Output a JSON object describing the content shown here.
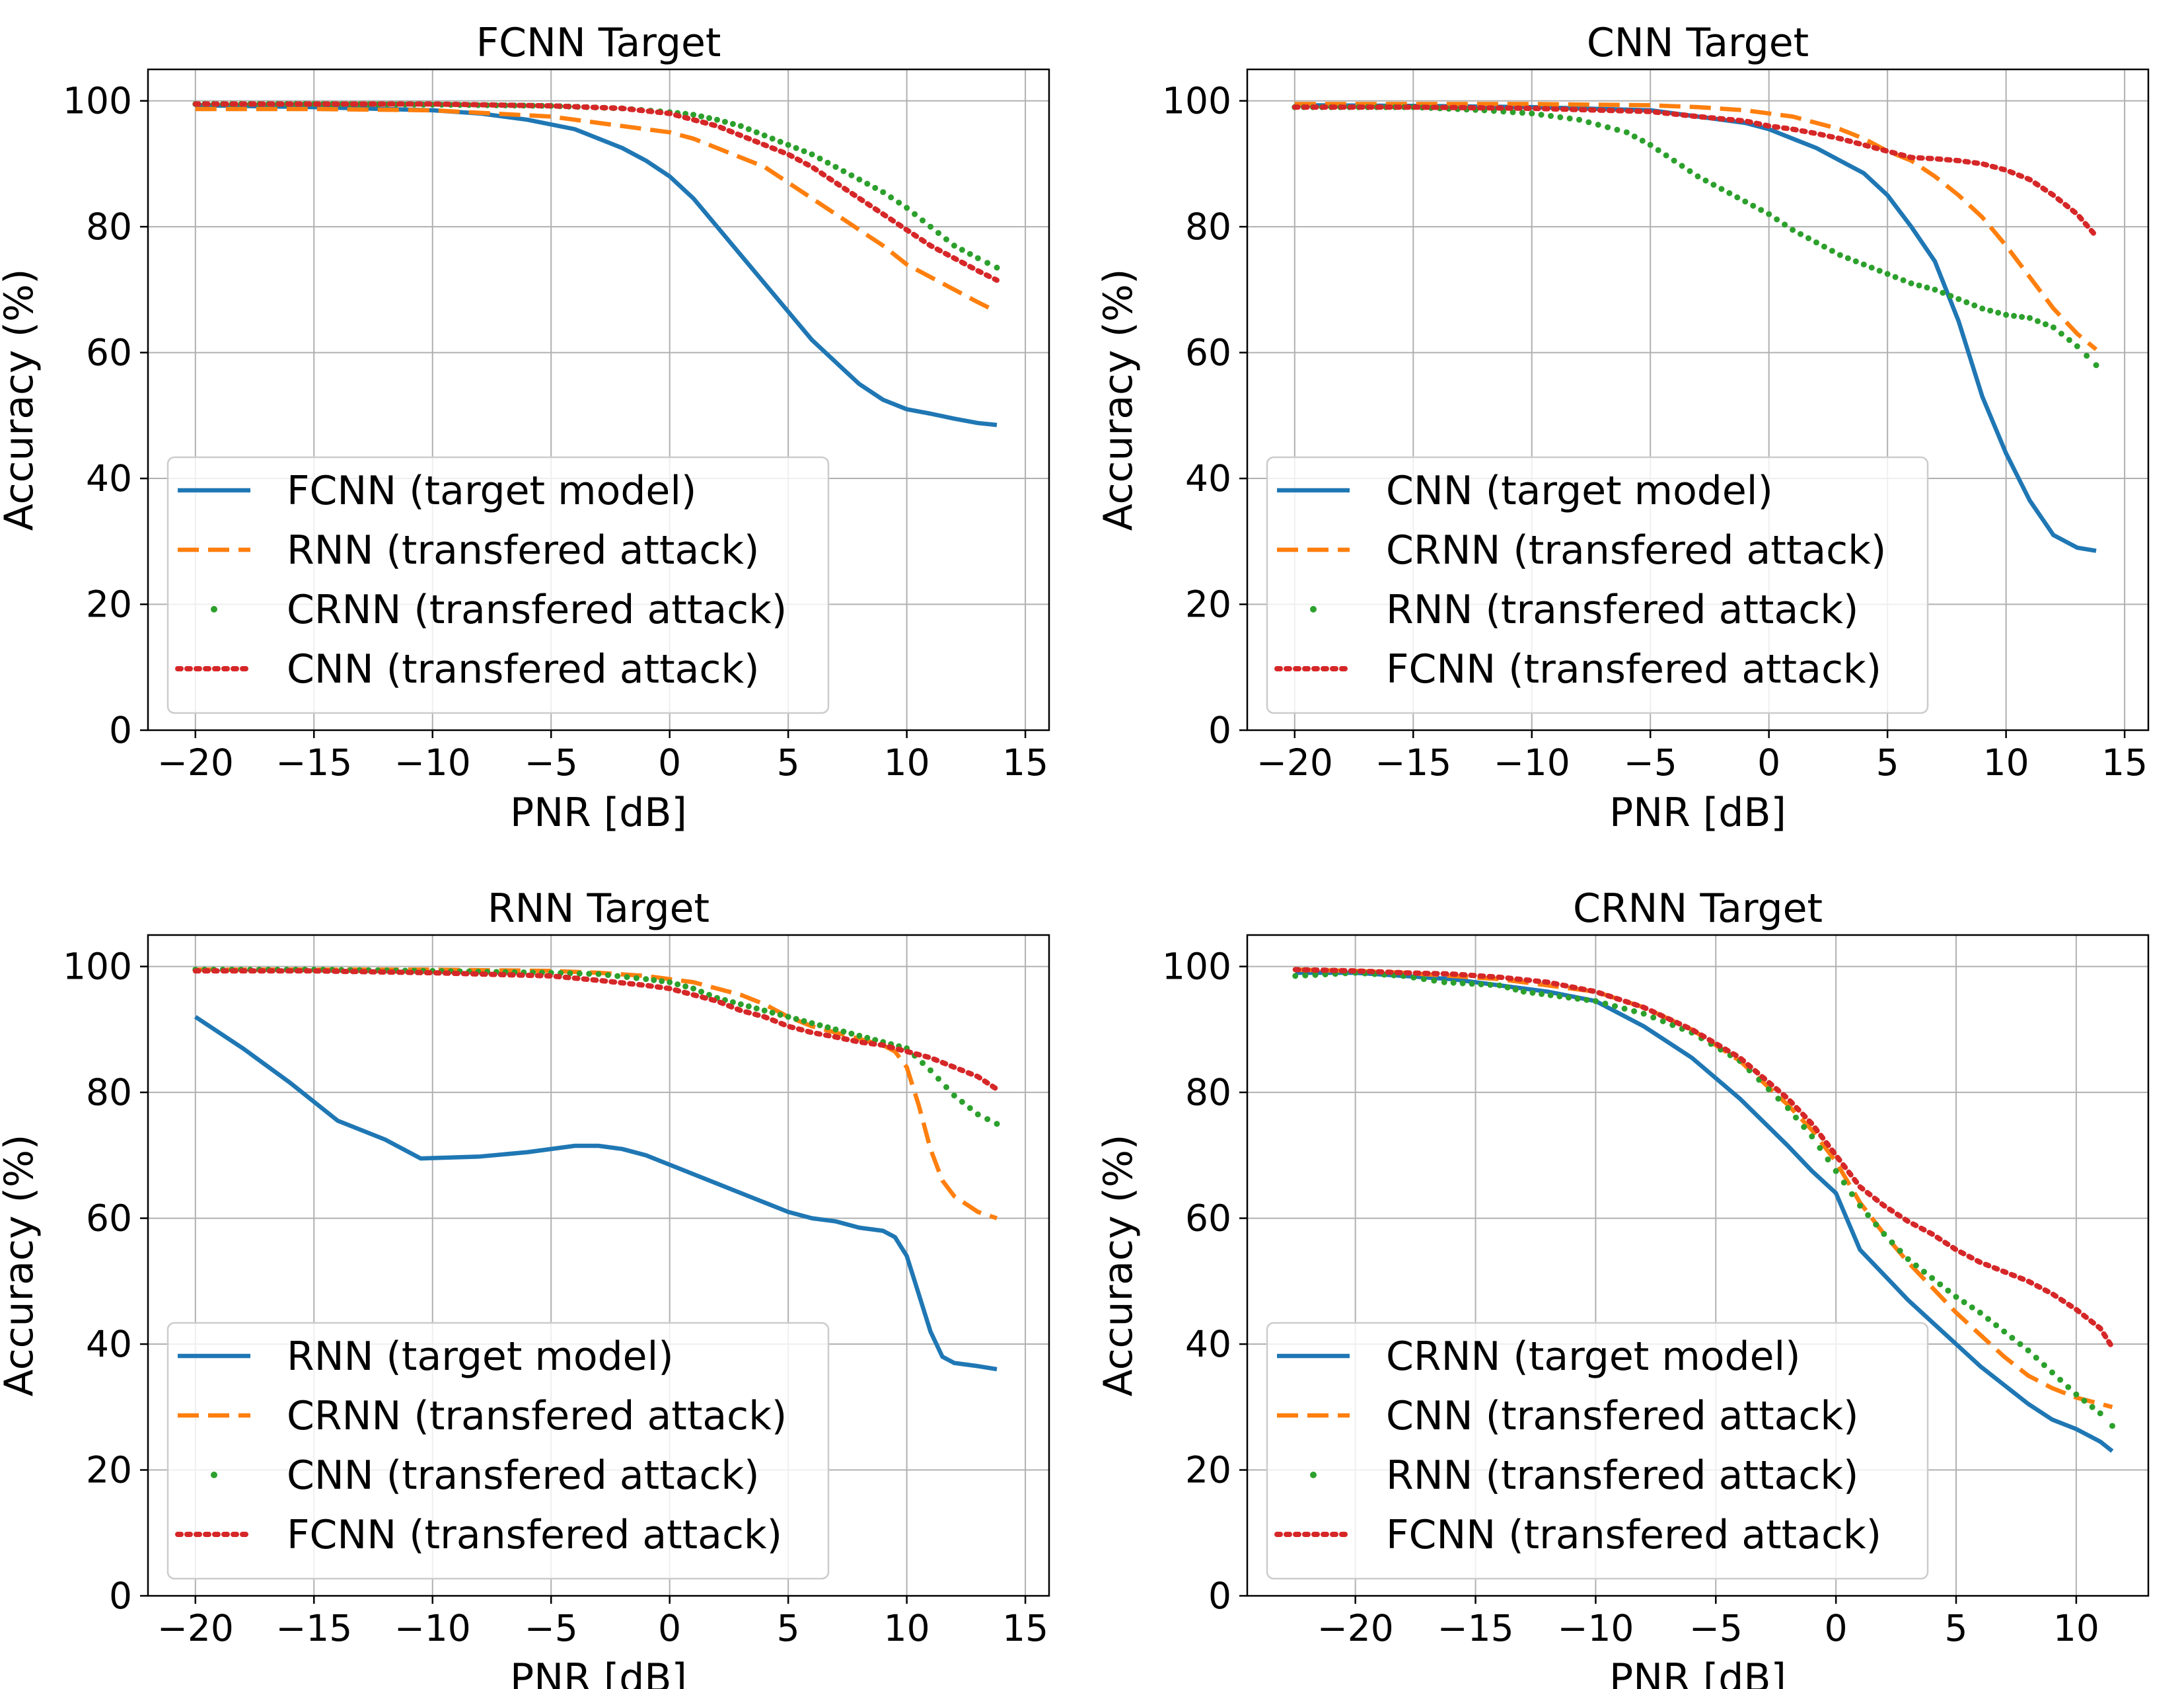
{
  "chart_data": [
    {
      "type": "line",
      "title": "FCNN Target",
      "xlabel": "PNR [dB]",
      "ylabel": "Accuracy (%)",
      "xlim": [
        -22,
        16
      ],
      "ylim": [
        0,
        105
      ],
      "xticks": [
        -20,
        -15,
        -10,
        -5,
        0,
        5,
        10,
        15
      ],
      "xtick_labels": [
        "−20",
        "−15",
        "−10",
        "−5",
        "0",
        "5",
        "10",
        "15"
      ],
      "yticks": [
        0,
        20,
        40,
        60,
        80,
        100
      ],
      "ytick_labels": [
        "0",
        "20",
        "40",
        "60",
        "80",
        "100"
      ],
      "grid": true,
      "legend_position": "lower-left",
      "series": [
        {
          "name": "FCNN (target model)",
          "style": "solid",
          "color": "#1f77b4",
          "x": [
            -20,
            -15,
            -10,
            -8,
            -6,
            -4,
            -2,
            -1,
            0,
            1,
            2,
            3,
            4,
            5,
            6,
            7,
            8,
            9,
            10,
            11,
            12,
            13,
            13.8
          ],
          "y": [
            99.3,
            99,
            98.5,
            98,
            97,
            95.5,
            92.5,
            90.5,
            88,
            84.5,
            80,
            75.5,
            71,
            66.5,
            62,
            58.5,
            55,
            52.5,
            51,
            50.3,
            49.5,
            48.8,
            48.5
          ]
        },
        {
          "name": "RNN (transfered attack)",
          "style": "dashed",
          "color": "#ff7f0e",
          "x": [
            -20,
            -15,
            -10,
            -5,
            -3,
            -1,
            0,
            1,
            2,
            3,
            4,
            5,
            6,
            7,
            8,
            9,
            10,
            11,
            12,
            13,
            13.8
          ],
          "y": [
            98.7,
            98.7,
            98.5,
            97.5,
            96.5,
            95.5,
            95,
            94,
            92.5,
            91,
            89.5,
            87,
            84.5,
            82,
            79.5,
            77,
            74,
            72,
            70,
            68,
            66.5
          ]
        },
        {
          "name": "CRNN (transfered attack)",
          "style": "dotted",
          "color": "#2ca02c",
          "x": [
            -20,
            -15,
            -10,
            -5,
            -2,
            0,
            1,
            2,
            3,
            4,
            5,
            6,
            7,
            8,
            9,
            10,
            11,
            12,
            13,
            13.8
          ],
          "y": [
            99.5,
            99.5,
            99.4,
            99.2,
            98.8,
            98.2,
            97.8,
            97,
            96,
            94.5,
            93,
            91.5,
            89.5,
            87.5,
            85.5,
            83,
            80,
            77,
            75,
            73.5
          ]
        },
        {
          "name": "CNN (transfered attack)",
          "style": "dashdot",
          "color": "#d62728",
          "x": [
            -20,
            -15,
            -10,
            -5,
            -2,
            0,
            1,
            2,
            3,
            4,
            5,
            6,
            7,
            8,
            9,
            10,
            11,
            12,
            13,
            13.8
          ],
          "y": [
            99.5,
            99.5,
            99.5,
            99.2,
            98.8,
            98,
            97,
            96,
            94.5,
            93,
            91.5,
            89.5,
            87,
            84.5,
            82,
            79.5,
            77,
            75,
            73,
            71.5
          ]
        }
      ]
    },
    {
      "type": "line",
      "title": "CNN Target",
      "xlabel": "PNR [dB]",
      "ylabel": "Accuracy (%)",
      "xlim": [
        -22,
        16
      ],
      "ylim": [
        0,
        105
      ],
      "xticks": [
        -20,
        -15,
        -10,
        -5,
        0,
        5,
        10,
        15
      ],
      "xtick_labels": [
        "−20",
        "−15",
        "−10",
        "−5",
        "0",
        "5",
        "10",
        "15"
      ],
      "yticks": [
        0,
        20,
        40,
        60,
        80,
        100
      ],
      "ytick_labels": [
        "0",
        "20",
        "40",
        "60",
        "80",
        "100"
      ],
      "grid": true,
      "legend_position": "lower-left",
      "series": [
        {
          "name": "CNN (target model)",
          "style": "solid",
          "color": "#1f77b4",
          "x": [
            -20,
            -15,
            -10,
            -5,
            -3,
            -1,
            0,
            1,
            2,
            3,
            4,
            5,
            6,
            7,
            8,
            9,
            10,
            11,
            12,
            13,
            13.8
          ],
          "y": [
            99.3,
            99.2,
            99,
            98.5,
            97.5,
            96.5,
            95.5,
            94,
            92.5,
            90.5,
            88.5,
            85,
            80,
            74.5,
            65,
            53,
            44,
            36.5,
            31,
            29,
            28.5
          ]
        },
        {
          "name": "CRNN (transfered attack)",
          "style": "dashed",
          "color": "#ff7f0e",
          "x": [
            -20,
            -15,
            -10,
            -5,
            -3,
            -1,
            0,
            1,
            2,
            3,
            4,
            5,
            6,
            7,
            8,
            9,
            10,
            11,
            12,
            13,
            13.8
          ],
          "y": [
            99.5,
            99.5,
            99.5,
            99.3,
            99,
            98.5,
            98,
            97.5,
            96.5,
            95.5,
            94,
            92,
            90.5,
            88,
            85,
            81.5,
            77,
            72,
            67,
            63,
            60.5
          ]
        },
        {
          "name": "RNN (transfered attack)",
          "style": "dotted",
          "color": "#2ca02c",
          "x": [
            -20,
            -15,
            -12,
            -10,
            -8,
            -6,
            -5,
            -4,
            -3,
            -2,
            -1,
            0,
            1,
            2,
            3,
            4,
            5,
            6,
            7,
            8,
            9,
            10,
            11,
            12,
            13,
            13.8
          ],
          "y": [
            99,
            99,
            98.5,
            98,
            97,
            95,
            93,
            90.5,
            88,
            86,
            84,
            82,
            79.5,
            77.5,
            75.5,
            74,
            72.5,
            71,
            70,
            68.5,
            67,
            66,
            65.5,
            64,
            61,
            58
          ]
        },
        {
          "name": "FCNN (transfered attack)",
          "style": "dashdot",
          "color": "#d62728",
          "x": [
            -20,
            -15,
            -10,
            -5,
            -3,
            -1,
            0,
            1,
            2,
            3,
            4,
            5,
            6,
            7,
            8,
            9,
            10,
            11,
            12,
            13,
            13.8
          ],
          "y": [
            99,
            99,
            98.8,
            98.3,
            97.5,
            96.8,
            96,
            95.5,
            94.8,
            94,
            93,
            92,
            91,
            90.8,
            90.5,
            90,
            89,
            87.5,
            85,
            82,
            78.5
          ]
        }
      ]
    },
    {
      "type": "line",
      "title": "RNN Target",
      "xlabel": "PNR [dB]",
      "ylabel": "Accuracy (%)",
      "xlim": [
        -22,
        16
      ],
      "ylim": [
        0,
        105
      ],
      "xticks": [
        -20,
        -15,
        -10,
        -5,
        0,
        5,
        10,
        15
      ],
      "xtick_labels": [
        "−20",
        "−15",
        "−10",
        "−5",
        "0",
        "5",
        "10",
        "15"
      ],
      "yticks": [
        0,
        20,
        40,
        60,
        80,
        100
      ],
      "ytick_labels": [
        "0",
        "20",
        "40",
        "60",
        "80",
        "100"
      ],
      "grid": true,
      "legend_position": "lower-left",
      "series": [
        {
          "name": "RNN (target model)",
          "style": "solid",
          "color": "#1f77b4",
          "x": [
            -20,
            -18,
            -16,
            -14,
            -12,
            -10.5,
            -8,
            -6,
            -4,
            -3,
            -2,
            -1,
            0,
            1,
            2,
            3,
            4,
            5,
            6,
            7,
            8,
            9,
            9.5,
            10,
            10.5,
            11,
            11.5,
            12,
            13,
            13.8
          ],
          "y": [
            92,
            87,
            81.5,
            75.5,
            72.5,
            69.5,
            69.8,
            70.5,
            71.5,
            71.5,
            71,
            70,
            68.5,
            67,
            65.5,
            64,
            62.5,
            61,
            60,
            59.5,
            58.5,
            58,
            57,
            54,
            48,
            42,
            38,
            37,
            36.5,
            36
          ]
        },
        {
          "name": "CRNN (transfered attack)",
          "style": "dashed",
          "color": "#ff7f0e",
          "x": [
            -20,
            -15,
            -10,
            -5,
            -3,
            -1,
            0,
            1,
            2,
            3,
            4,
            5,
            6,
            7,
            8,
            9,
            9.5,
            10,
            10.5,
            11,
            11.5,
            12,
            13,
            13.8
          ],
          "y": [
            99.5,
            99.5,
            99.5,
            99.3,
            99,
            98.5,
            98,
            97.5,
            96.5,
            95.5,
            94,
            92,
            90.5,
            89.5,
            88.5,
            87.5,
            86.5,
            84,
            78,
            71,
            66,
            63.5,
            61,
            60
          ]
        },
        {
          "name": "CNN (transfered attack)",
          "style": "dotted",
          "color": "#2ca02c",
          "x": [
            -20,
            -15,
            -10,
            -5,
            -3,
            -1,
            0,
            1,
            2,
            3,
            4,
            5,
            6,
            7,
            8,
            9,
            10,
            11,
            12,
            13,
            13.8
          ],
          "y": [
            99.5,
            99.5,
            99.3,
            99,
            98.8,
            98,
            97.5,
            96.5,
            95,
            94,
            93,
            92,
            91,
            90,
            89,
            88,
            87,
            83.5,
            79.5,
            76.5,
            75
          ]
        },
        {
          "name": "FCNN (transfered attack)",
          "style": "dashdot",
          "color": "#d62728",
          "x": [
            -20,
            -15,
            -10,
            -5,
            -3,
            -1,
            0,
            1,
            2,
            3,
            4,
            5,
            6,
            7,
            8,
            9,
            10,
            11,
            12,
            13,
            13.8
          ],
          "y": [
            99.3,
            99.3,
            99,
            98.5,
            97.8,
            97,
            96.5,
            95.5,
            94.5,
            93,
            92,
            90.5,
            89.5,
            88.8,
            88,
            87.5,
            86.5,
            85.5,
            84,
            82.5,
            80.5
          ]
        }
      ]
    },
    {
      "type": "line",
      "title": "CRNN Target",
      "xlabel": "PNR [dB]",
      "ylabel": "Accuracy (%)",
      "xlim": [
        -24.5,
        13
      ],
      "ylim": [
        0,
        105
      ],
      "xticks": [
        -20,
        -15,
        -10,
        -5,
        0,
        5,
        10
      ],
      "xtick_labels": [
        "−20",
        "−15",
        "−10",
        "−5",
        "0",
        "5",
        "10"
      ],
      "yticks": [
        0,
        20,
        40,
        60,
        80,
        100
      ],
      "ytick_labels": [
        "0",
        "20",
        "40",
        "60",
        "80",
        "100"
      ],
      "grid": true,
      "legend_position": "lower-left",
      "series": [
        {
          "name": "CRNN (target model)",
          "style": "solid",
          "color": "#1f77b4",
          "x": [
            -22.5,
            -20,
            -18,
            -16,
            -14,
            -12,
            -10,
            -8,
            -6,
            -4,
            -2,
            -1,
            0,
            1,
            2,
            3,
            4,
            5,
            6,
            7,
            8,
            9,
            10,
            11,
            11.5
          ],
          "y": [
            99,
            99,
            98.5,
            98,
            97,
            96,
            94.5,
            90.5,
            85.5,
            79,
            71.5,
            67.5,
            64,
            55,
            51,
            47,
            43.5,
            40,
            36.5,
            33.5,
            30.5,
            28,
            26.5,
            24.5,
            23
          ]
        },
        {
          "name": "CNN (transfered attack)",
          "style": "dashed",
          "color": "#ff7f0e",
          "x": [
            -22.5,
            -20,
            -18,
            -16,
            -14,
            -12,
            -10,
            -8,
            -6,
            -4,
            -2,
            -1,
            0,
            1,
            2,
            3,
            4,
            5,
            6,
            7,
            8,
            9,
            10,
            11,
            11.5
          ],
          "y": [
            99.5,
            99.3,
            99,
            98.5,
            98,
            97,
            96,
            93.5,
            90,
            85,
            78,
            74,
            69,
            62.5,
            57.5,
            53,
            49,
            45,
            41.5,
            38,
            35,
            33,
            31.5,
            30.5,
            30
          ]
        },
        {
          "name": "RNN (transfered attack)",
          "style": "dotted",
          "color": "#2ca02c",
          "x": [
            -22.5,
            -20,
            -18,
            -16.3,
            -14,
            -13,
            -10,
            -8,
            -6,
            -4,
            -2,
            -1,
            0,
            1,
            2,
            3,
            4,
            5,
            6,
            7,
            8,
            9,
            10,
            11,
            11.5
          ],
          "y": [
            98.5,
            99,
            98.5,
            97.5,
            97,
            96,
            94.5,
            92.5,
            89.5,
            85,
            77.5,
            73,
            67.5,
            62,
            57.5,
            53.5,
            50.5,
            47.5,
            45,
            42,
            39,
            35.5,
            32,
            29,
            27
          ]
        },
        {
          "name": "FCNN (transfered attack)",
          "style": "dashdot",
          "color": "#d62728",
          "x": [
            -22.5,
            -20,
            -18,
            -16,
            -14,
            -12,
            -10,
            -8,
            -6,
            -4,
            -2,
            -1,
            0,
            1,
            2,
            3,
            4,
            5,
            6,
            7,
            8,
            9,
            10,
            11,
            11.5
          ],
          "y": [
            99.5,
            99.3,
            99,
            98.8,
            98.3,
            97.5,
            96,
            93.5,
            90,
            85.5,
            79,
            75,
            70,
            65,
            62,
            59.5,
            57.5,
            55,
            53,
            51.5,
            50,
            48,
            45.5,
            42.5,
            39.5
          ]
        }
      ]
    }
  ]
}
